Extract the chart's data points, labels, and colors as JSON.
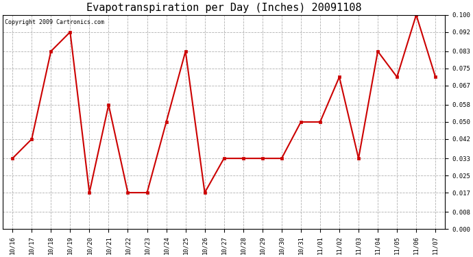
{
  "title": "Evapotranspiration per Day (Inches) 20091108",
  "copyright": "Copyright 2009 Cartronics.com",
  "x_labels": [
    "10/16",
    "10/17",
    "10/18",
    "10/19",
    "10/20",
    "10/21",
    "10/22",
    "10/23",
    "10/24",
    "10/25",
    "10/26",
    "10/27",
    "10/28",
    "10/29",
    "10/30",
    "10/31",
    "11/01",
    "11/02",
    "11/03",
    "11/04",
    "11/05",
    "11/06",
    "11/07"
  ],
  "y_values": [
    0.033,
    0.042,
    0.083,
    0.092,
    0.017,
    0.058,
    0.017,
    0.017,
    0.05,
    0.083,
    0.017,
    0.033,
    0.033,
    0.033,
    0.033,
    0.05,
    0.05,
    0.071,
    0.033,
    0.083,
    0.071,
    0.1,
    0.071
  ],
  "line_color": "#cc0000",
  "marker_color": "#cc0000",
  "bg_color": "#ffffff",
  "plot_bg_color": "#ffffff",
  "grid_color": "#b0b0b0",
  "y_ticks": [
    0.0,
    0.008,
    0.017,
    0.025,
    0.033,
    0.042,
    0.05,
    0.058,
    0.067,
    0.075,
    0.083,
    0.092,
    0.1
  ],
  "ylim": [
    0.0,
    0.1
  ],
  "title_fontsize": 11,
  "copyright_fontsize": 6,
  "tick_fontsize": 6.5,
  "figwidth": 6.9,
  "figheight": 3.75,
  "dpi": 100
}
